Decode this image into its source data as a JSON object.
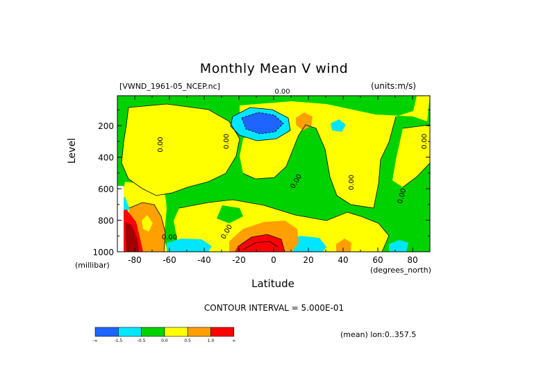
{
  "chart_data": {
    "type": "heatmap",
    "title": "Monthly Mean V wind",
    "subtitle_left": "[VWND_1961-05_NCEP.nc]",
    "subtitle_right": "(units:m/s)",
    "xlabel": "Latitude",
    "xunit": "(degrees_north)",
    "ylabel": "Level",
    "yunit": "(millibar)",
    "xlim": [
      -90,
      90
    ],
    "ylim": [
      1000,
      10
    ],
    "x_ticks": [
      -80,
      -60,
      -40,
      -20,
      0,
      20,
      40,
      60,
      80
    ],
    "y_ticks": [
      200,
      400,
      600,
      800,
      1000
    ],
    "contour_interval": "CONTOUR INTERVAL = 5.000E-01",
    "contour_labels": [
      "0.00",
      "0.00",
      "0.00",
      "0.00",
      "0.00",
      "0.00",
      "0.00",
      "0.00",
      "0.00"
    ],
    "colorbar": {
      "colors": [
        "#1e64ff",
        "#00e6ff",
        "#00d200",
        "#ffff00",
        "#ffa000",
        "#ff0000"
      ],
      "tick_labels": [
        "-∞",
        "-1.5",
        "-0.5",
        "0.0",
        "0.5",
        "1.0",
        "∞"
      ]
    },
    "annotation": "(mean) lon:0..357.5"
  }
}
